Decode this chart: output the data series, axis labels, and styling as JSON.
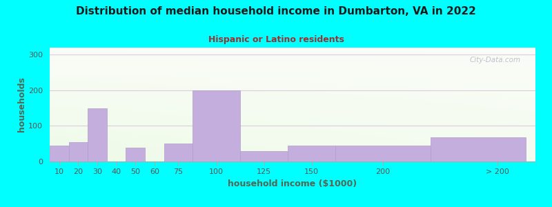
{
  "title": "Distribution of median household income in Dumbarton, VA in 2022",
  "subtitle": "Hispanic or Latino residents",
  "xlabel": "household income ($1000)",
  "ylabel": "households",
  "background_outer": "#00FFFF",
  "bar_color": "#C4AEDD",
  "bar_edge_color": "#B09CC8",
  "title_color": "#1a1a1a",
  "subtitle_color": "#993333",
  "axis_label_color": "#556655",
  "tick_color": "#555555",
  "watermark": "City-Data.com",
  "ylim": [
    0,
    320
  ],
  "yticks": [
    0,
    100,
    200,
    300
  ],
  "categories": [
    "10",
    "20",
    "30",
    "40",
    "50",
    "60",
    "75",
    "100",
    "125",
    "150",
    "200",
    "> 200"
  ],
  "values": [
    45,
    55,
    150,
    0,
    38,
    0,
    50,
    200,
    30,
    45,
    45,
    68
  ],
  "x_lefts": [
    0,
    10,
    20,
    30,
    40,
    50,
    60,
    75,
    100,
    125,
    150,
    200
  ],
  "x_rights": [
    10,
    20,
    30,
    40,
    50,
    60,
    75,
    100,
    125,
    150,
    200,
    250
  ],
  "x_tick_centers": [
    5,
    15,
    25,
    35,
    45,
    55,
    67.5,
    87.5,
    112.5,
    137.5,
    175,
    235
  ],
  "xlim": [
    0,
    255
  ],
  "plot_bg_colors": [
    "#f8fdf2",
    "#e8f5e4",
    "#d8f0dc"
  ],
  "title_fontsize": 11,
  "subtitle_fontsize": 9,
  "label_fontsize": 9,
  "tick_fontsize": 8
}
